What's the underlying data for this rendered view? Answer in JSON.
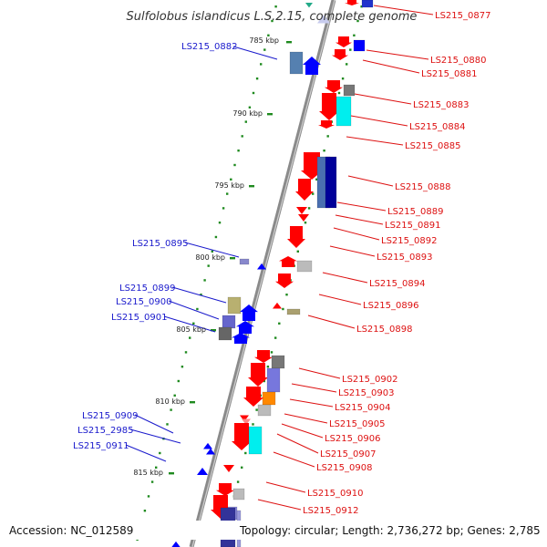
{
  "title": "Sulfolobus islandicus L.S.2.15, complete genome",
  "footer": {
    "accession": "Accession: NC_012589",
    "summary": "Topology: circular; Length: 2,736,272 bp; Genes: 2,785"
  },
  "colors": {
    "left_labels": "#1a1acc",
    "right_labels": "#dd1111",
    "backbone": "#8a8a8a",
    "tick_marks": "#1f8a1f",
    "forward_genes": "#ff0000",
    "reverse_genes": "#0000ff"
  },
  "scale_labels": [
    {
      "text": "785 kbp",
      "kbp": 785
    },
    {
      "text": "790 kbp",
      "kbp": 790
    },
    {
      "text": "795 kbp",
      "kbp": 795
    },
    {
      "text": "800 kbp",
      "kbp": 800
    },
    {
      "text": "805 kbp",
      "kbp": 805
    },
    {
      "text": "810 kbp",
      "kbp": 810
    },
    {
      "text": "815 kbp",
      "kbp": 815
    }
  ],
  "left_labels": [
    "LS215_0882",
    "LS215_0895",
    "LS215_0899",
    "LS215_0900",
    "LS215_0901",
    "LS215_0909",
    "LS215_2985",
    "LS215_0911"
  ],
  "right_labels": [
    "LS215_0877",
    "LS215_0880",
    "LS215_0881",
    "LS215_0883",
    "LS215_0884",
    "LS215_0885",
    "LS215_0888",
    "LS215_0889",
    "LS215_0891",
    "LS215_0892",
    "LS215_0893",
    "LS215_0894",
    "LS215_0896",
    "LS215_0898",
    "LS215_0902",
    "LS215_0903",
    "LS215_0904",
    "LS215_0905",
    "LS215_0906",
    "LS215_0907",
    "LS215_0908",
    "LS215_0910",
    "LS215_0912"
  ]
}
